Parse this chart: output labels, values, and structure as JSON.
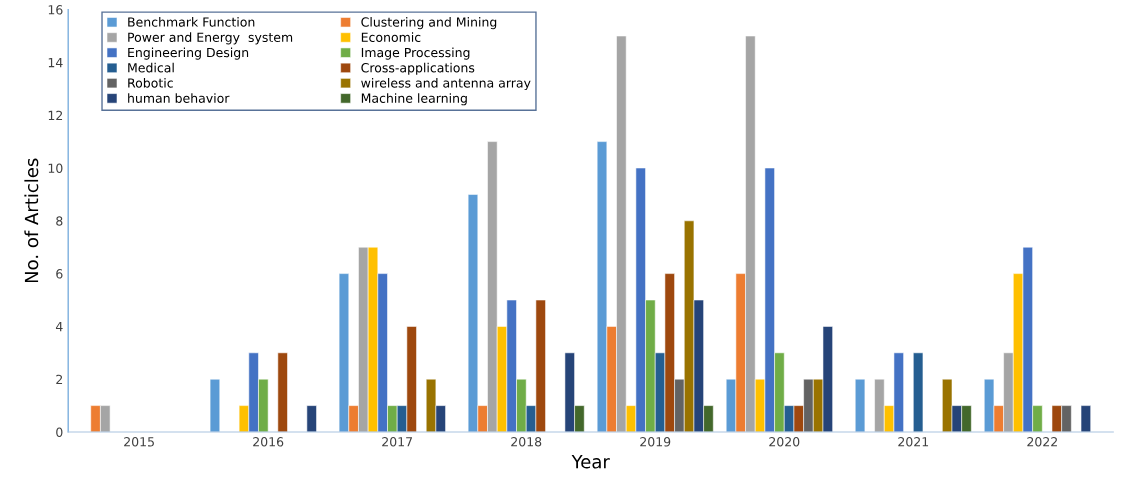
{
  "chart_data": {
    "type": "bar",
    "xlabel": "Year",
    "ylabel": "No. of Articles",
    "categories": [
      "2015",
      "2016",
      "2017",
      "2018",
      "2019",
      "2020",
      "2021",
      "2022"
    ],
    "ylim": [
      0,
      16
    ],
    "yticks": [
      0,
      2,
      4,
      6,
      8,
      10,
      12,
      14,
      16
    ],
    "grid": false,
    "legend": "top left",
    "series": [
      {
        "name": "Benchmark Function",
        "color": "#5b9bd5",
        "values": [
          null,
          2,
          6,
          9,
          11,
          2,
          2,
          2
        ]
      },
      {
        "name": "Clustering and Mining",
        "color": "#ed7d31",
        "values": [
          1,
          null,
          1,
          1,
          4,
          6,
          null,
          1
        ]
      },
      {
        "name": "Power and Energy  system",
        "color": "#a5a5a5",
        "values": [
          1,
          null,
          7,
          11,
          15,
          15,
          2,
          3
        ]
      },
      {
        "name": "Economic",
        "color": "#ffc000",
        "values": [
          null,
          1,
          7,
          4,
          1,
          2,
          1,
          6
        ]
      },
      {
        "name": "Engineering Design",
        "color": "#4472c4",
        "values": [
          null,
          3,
          6,
          5,
          10,
          10,
          3,
          7
        ]
      },
      {
        "name": "Image Processing",
        "color": "#70ad47",
        "values": [
          null,
          2,
          1,
          2,
          5,
          3,
          null,
          1
        ]
      },
      {
        "name": "Medical",
        "color": "#255e91",
        "values": [
          null,
          null,
          1,
          1,
          3,
          1,
          3,
          null
        ]
      },
      {
        "name": "Cross-applications",
        "color": "#9e480e",
        "values": [
          null,
          3,
          4,
          5,
          6,
          1,
          null,
          1
        ]
      },
      {
        "name": "Robotic",
        "color": "#636363",
        "values": [
          null,
          null,
          null,
          null,
          2,
          2,
          null,
          1
        ]
      },
      {
        "name": "wireless and antenna array",
        "color": "#997300",
        "values": [
          null,
          null,
          2,
          null,
          8,
          2,
          2,
          null
        ]
      },
      {
        "name": "human behavior",
        "color": "#264478",
        "values": [
          null,
          1,
          1,
          3,
          5,
          4,
          1,
          1
        ]
      },
      {
        "name": "Machine learning",
        "color": "#43682b",
        "values": [
          null,
          null,
          null,
          1,
          1,
          null,
          1,
          null
        ]
      }
    ]
  }
}
